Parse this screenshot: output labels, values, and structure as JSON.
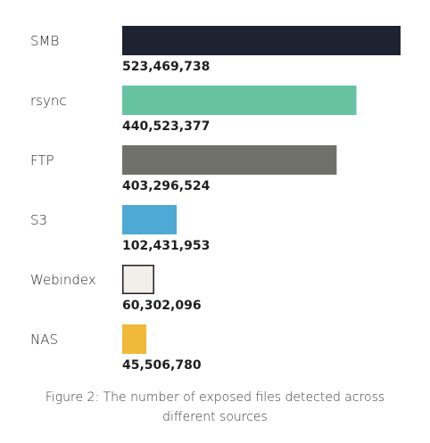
{
  "chart_data": {
    "type": "bar",
    "orientation": "horizontal",
    "categories": [
      "SMB",
      "rsync",
      "FTP",
      "S3",
      "Webindex",
      "NAS"
    ],
    "values": [
      523469738,
      440523377,
      403296524,
      102431953,
      60302096,
      45506780
    ],
    "value_labels": [
      "523,469,738",
      "440,523,377",
      "403,296,524",
      "102,431,953",
      "60,302,096",
      "45,506,780"
    ],
    "colors": [
      "#1f2230",
      "#66c2a0",
      "#70706b",
      "#4eaad4",
      "#f2eee9",
      "#f0b93a"
    ],
    "bar_outline": "#1f1f1f",
    "grid": false,
    "legend": "none"
  },
  "caption": "Figure 2: The number of exposed files detected across different sources"
}
